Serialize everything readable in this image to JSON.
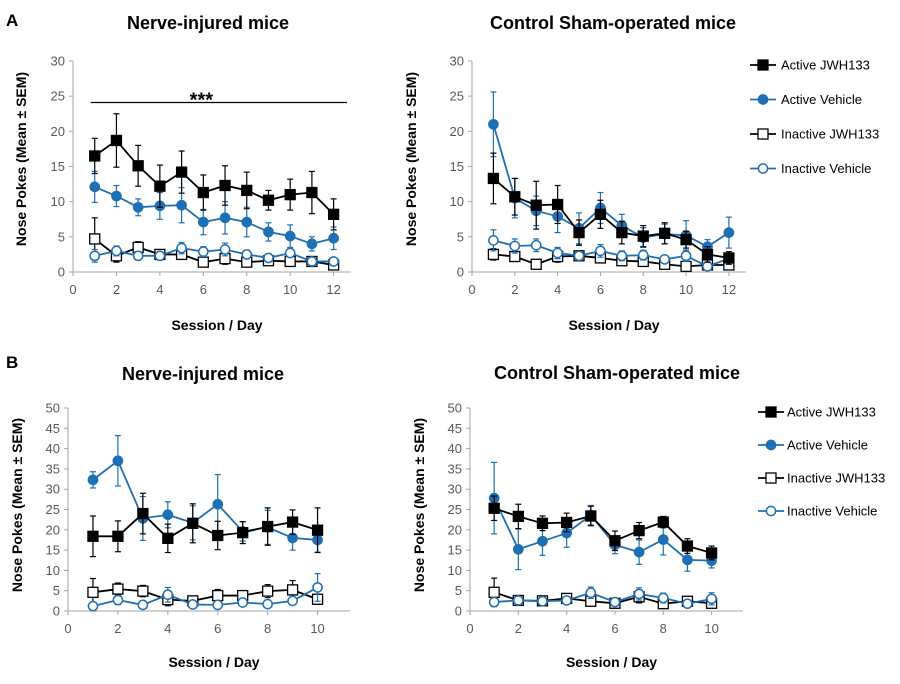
{
  "panels": [
    {
      "letter": "A"
    },
    {
      "letter": "B"
    }
  ],
  "colors": {
    "jwh133": "#000000",
    "vehicle": "#1f6fb4",
    "axis": "#a6a6a6",
    "tick_text": "#595959"
  },
  "chart_data": [
    {
      "type": "line",
      "title": "Nerve-injured mice",
      "xlabel": "Session / Day",
      "ylabel": "Nose Pokes (Mean ± SEM)",
      "xlim": [
        0,
        12.8
      ],
      "ylim": [
        0,
        30
      ],
      "xticks": [
        0,
        2,
        4,
        6,
        8,
        10,
        12
      ],
      "yticks": [
        0,
        5,
        10,
        15,
        20,
        25,
        30
      ],
      "x": [
        1,
        2,
        3,
        4,
        5,
        6,
        7,
        8,
        9,
        10,
        11,
        12
      ],
      "annotation": {
        "text": "***",
        "x_from": 1,
        "x_to": 12.2,
        "y": 24.1
      },
      "legend": false,
      "grid": false,
      "series": [
        {
          "name": "Active JWH133",
          "key": "jwh133",
          "marker": "square",
          "filled": true,
          "values": [
            16.5,
            18.7,
            15.1,
            12.2,
            14.2,
            11.3,
            12.3,
            11.6,
            10.2,
            11.0,
            11.3,
            8.2
          ],
          "errors": [
            2.5,
            3.8,
            2.9,
            3.0,
            3.0,
            2.5,
            2.8,
            2.6,
            1.4,
            2.2,
            3.0,
            2.2
          ]
        },
        {
          "name": "Active Vehicle",
          "key": "vehicle",
          "marker": "circle",
          "filled": true,
          "values": [
            12.1,
            10.8,
            9.2,
            9.4,
            9.5,
            7.1,
            7.7,
            7.1,
            5.7,
            5.1,
            4.0,
            4.8
          ],
          "errors": [
            2.2,
            1.5,
            1.2,
            1.9,
            2.5,
            1.8,
            2.3,
            2.1,
            1.3,
            1.6,
            1.0,
            1.6
          ]
        },
        {
          "name": "Inactive JWH133",
          "key": "jwh133",
          "marker": "square",
          "filled": false,
          "values": [
            4.7,
            2.3,
            3.5,
            2.5,
            2.5,
            1.4,
            1.9,
            1.4,
            1.6,
            1.5,
            1.5,
            1.0
          ],
          "errors": [
            3.0,
            0.9,
            0.8,
            0.6,
            0.7,
            0.6,
            0.8,
            0.5,
            0.6,
            0.6,
            0.6,
            0.5
          ]
        },
        {
          "name": "Inactive Vehicle",
          "key": "vehicle",
          "marker": "circle",
          "filled": false,
          "values": [
            2.3,
            3.0,
            2.3,
            2.3,
            3.4,
            2.9,
            3.2,
            2.5,
            2.0,
            2.7,
            1.5,
            1.5
          ],
          "errors": [
            0.9,
            0.7,
            0.6,
            0.6,
            0.8,
            0.7,
            0.9,
            0.6,
            0.5,
            0.6,
            0.4,
            0.4
          ]
        }
      ]
    },
    {
      "type": "line",
      "title": "Control Sham-operated mice",
      "xlabel": "Session / Day",
      "ylabel": "Nose Pokes (Mean ± SEM)",
      "xlim": [
        0,
        12.8
      ],
      "ylim": [
        0,
        30
      ],
      "xticks": [
        0,
        2,
        4,
        6,
        8,
        10,
        12
      ],
      "yticks": [
        0,
        5,
        10,
        15,
        20,
        25,
        30
      ],
      "x": [
        1,
        2,
        3,
        4,
        5,
        6,
        7,
        8,
        9,
        10,
        11,
        12
      ],
      "legend": true,
      "legend_position": "right",
      "grid": false,
      "series": [
        {
          "name": "Active JWH133",
          "key": "jwh133",
          "marker": "square",
          "filled": true,
          "values": [
            13.3,
            10.7,
            9.5,
            9.6,
            5.6,
            8.2,
            5.6,
            5.1,
            5.5,
            4.6,
            2.5,
            2.0
          ],
          "errors": [
            3.6,
            2.6,
            3.4,
            2.7,
            1.8,
            2.0,
            1.6,
            1.5,
            1.5,
            1.2,
            1.1,
            0.9
          ]
        },
        {
          "name": "Active Vehicle",
          "key": "vehicle",
          "marker": "circle",
          "filled": true,
          "values": [
            21.0,
            10.5,
            8.7,
            7.9,
            6.2,
            9.1,
            6.6,
            4.9,
            5.4,
            5.2,
            3.6,
            5.6
          ],
          "errors": [
            4.6,
            2.8,
            2.1,
            2.3,
            2.2,
            2.2,
            1.6,
            1.4,
            1.4,
            2.1,
            1.0,
            2.2
          ]
        },
        {
          "name": "Inactive JWH133",
          "key": "jwh133",
          "marker": "square",
          "filled": false,
          "values": [
            2.5,
            2.2,
            1.1,
            2.2,
            2.3,
            2.0,
            1.6,
            1.5,
            1.1,
            0.8,
            1.0,
            1.0
          ],
          "errors": [
            0.8,
            0.7,
            0.5,
            0.8,
            0.7,
            0.7,
            0.5,
            0.5,
            0.4,
            0.4,
            0.4,
            0.4
          ]
        },
        {
          "name": "Inactive Vehicle",
          "key": "vehicle",
          "marker": "circle",
          "filled": false,
          "values": [
            4.5,
            3.7,
            3.8,
            2.7,
            2.3,
            3.0,
            2.3,
            2.4,
            1.8,
            2.3,
            0.8,
            1.9
          ],
          "errors": [
            1.5,
            1.0,
            0.9,
            0.8,
            0.6,
            0.9,
            0.7,
            0.7,
            0.5,
            0.8,
            0.3,
            0.6
          ]
        }
      ]
    },
    {
      "type": "line",
      "title": "Nerve-injured mice",
      "xlabel": "Session / Day",
      "ylabel": "Nose Pokes (Mean ± SEM)",
      "xlim": [
        0,
        11.3
      ],
      "ylim": [
        0,
        50
      ],
      "xticks": [
        0,
        2,
        4,
        6,
        8,
        10
      ],
      "yticks": [
        0,
        5,
        10,
        15,
        20,
        25,
        30,
        35,
        40,
        45,
        50
      ],
      "x": [
        1,
        2,
        3,
        4,
        5,
        6,
        7,
        8,
        9,
        10
      ],
      "legend": false,
      "grid": false,
      "series": [
        {
          "name": "Active JWH133",
          "key": "jwh133",
          "marker": "square",
          "filled": true,
          "values": [
            18.4,
            18.4,
            24.0,
            17.9,
            21.6,
            18.6,
            19.3,
            20.8,
            21.9,
            19.9
          ],
          "errors": [
            5.0,
            3.8,
            5.0,
            3.5,
            4.8,
            3.5,
            2.7,
            4.6,
            3.0,
            5.5
          ]
        },
        {
          "name": "Active Vehicle",
          "key": "vehicle",
          "marker": "circle",
          "filled": true,
          "values": [
            32.3,
            37.0,
            22.8,
            23.7,
            21.7,
            26.3,
            19.6,
            20.6,
            18.0,
            17.5
          ],
          "errors": [
            2.0,
            6.2,
            5.4,
            3.2,
            4.2,
            7.3,
            2.4,
            4.2,
            3.0,
            3.0
          ]
        },
        {
          "name": "Inactive JWH133",
          "key": "jwh133",
          "marker": "square",
          "filled": false,
          "values": [
            4.6,
            5.4,
            4.9,
            2.8,
            2.5,
            3.8,
            3.8,
            4.9,
            5.2,
            2.9
          ],
          "errors": [
            3.4,
            1.5,
            1.4,
            1.5,
            1.0,
            1.5,
            1.1,
            1.6,
            2.3,
            1.2
          ]
        },
        {
          "name": "Inactive Vehicle",
          "key": "vehicle",
          "marker": "circle",
          "filled": false,
          "values": [
            1.2,
            2.7,
            1.5,
            4.0,
            1.6,
            1.5,
            2.1,
            1.7,
            2.5,
            5.8
          ],
          "errors": [
            1.0,
            1.1,
            0.7,
            1.8,
            0.6,
            0.6,
            0.8,
            0.6,
            1.0,
            3.4
          ]
        }
      ]
    },
    {
      "type": "line",
      "title": "Control Sham-operated mice",
      "xlabel": "Session / Day",
      "ylabel": "Nose Pokes (Mean ± SEM)",
      "xlim": [
        0,
        11.3
      ],
      "ylim": [
        0,
        50
      ],
      "xticks": [
        0,
        2,
        4,
        6,
        8,
        10
      ],
      "yticks": [
        0,
        5,
        10,
        15,
        20,
        25,
        30,
        35,
        40,
        45,
        50
      ],
      "x": [
        1,
        2,
        3,
        4,
        5,
        6,
        7,
        8,
        9,
        10
      ],
      "legend": true,
      "legend_position": "right",
      "grid": false,
      "series": [
        {
          "name": "Active JWH133",
          "key": "jwh133",
          "marker": "square",
          "filled": true,
          "values": [
            25.3,
            23.3,
            21.6,
            21.8,
            23.4,
            17.3,
            19.8,
            21.9,
            16.0,
            14.3
          ],
          "errors": [
            3.0,
            3.0,
            1.8,
            2.3,
            2.4,
            2.4,
            2.0,
            1.4,
            1.8,
            1.7
          ]
        },
        {
          "name": "Active Vehicle",
          "key": "vehicle",
          "marker": "circle",
          "filled": true,
          "values": [
            27.8,
            15.2,
            17.2,
            19.2,
            23.6,
            16.3,
            14.5,
            17.6,
            12.6,
            12.4
          ],
          "errors": [
            8.8,
            5.0,
            3.5,
            3.5,
            2.4,
            2.2,
            3.0,
            3.8,
            2.8,
            1.8
          ]
        },
        {
          "name": "Inactive JWH133",
          "key": "jwh133",
          "marker": "square",
          "filled": false,
          "values": [
            4.6,
            2.6,
            2.5,
            3.1,
            2.4,
            1.9,
            3.5,
            1.8,
            2.4,
            1.9
          ],
          "errors": [
            3.5,
            1.0,
            0.8,
            1.0,
            0.9,
            0.7,
            1.5,
            0.7,
            0.8,
            0.7
          ]
        },
        {
          "name": "Inactive Vehicle",
          "key": "vehicle",
          "marker": "circle",
          "filled": false,
          "values": [
            2.2,
            2.6,
            2.4,
            2.6,
            4.5,
            2.2,
            4.2,
            3.2,
            1.8,
            3.0
          ],
          "errors": [
            0.8,
            0.8,
            0.6,
            0.7,
            1.4,
            0.7,
            1.5,
            1.2,
            0.6,
            1.5
          ]
        }
      ]
    }
  ]
}
